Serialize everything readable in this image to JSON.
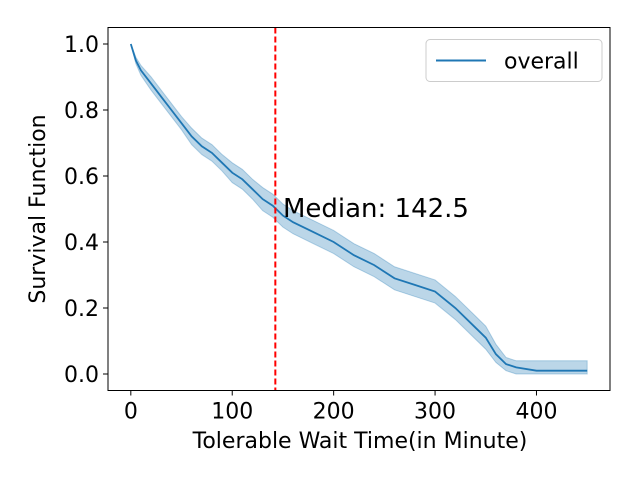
{
  "chart_data": {
    "type": "survival",
    "xlabel": "Tolerable Wait Time(in Minute)",
    "ylabel": "Survival Function",
    "x": [
      0,
      5,
      10,
      20,
      30,
      40,
      50,
      60,
      70,
      80,
      90,
      100,
      110,
      120,
      130,
      140,
      150,
      160,
      180,
      200,
      220,
      240,
      260,
      280,
      300,
      320,
      340,
      350,
      360,
      370,
      380,
      400,
      450
    ],
    "series": [
      {
        "name": "overall",
        "color": "#1f77b4",
        "values": [
          1.0,
          0.95,
          0.92,
          0.88,
          0.84,
          0.8,
          0.76,
          0.72,
          0.69,
          0.67,
          0.64,
          0.61,
          0.59,
          0.56,
          0.53,
          0.51,
          0.48,
          0.46,
          0.43,
          0.4,
          0.36,
          0.33,
          0.29,
          0.27,
          0.25,
          0.2,
          0.14,
          0.11,
          0.06,
          0.03,
          0.02,
          0.01,
          0.01
        ],
        "upper": [
          1.0,
          0.96,
          0.935,
          0.9,
          0.86,
          0.82,
          0.78,
          0.745,
          0.715,
          0.695,
          0.665,
          0.64,
          0.62,
          0.59,
          0.565,
          0.545,
          0.515,
          0.495,
          0.465,
          0.435,
          0.395,
          0.365,
          0.325,
          0.305,
          0.285,
          0.235,
          0.175,
          0.145,
          0.09,
          0.05,
          0.04,
          0.04,
          0.04
        ],
        "lower": [
          1.0,
          0.94,
          0.905,
          0.86,
          0.82,
          0.78,
          0.74,
          0.695,
          0.665,
          0.645,
          0.615,
          0.58,
          0.56,
          0.53,
          0.495,
          0.475,
          0.445,
          0.425,
          0.395,
          0.365,
          0.325,
          0.295,
          0.255,
          0.235,
          0.215,
          0.165,
          0.105,
          0.075,
          0.035,
          0.01,
          0.0,
          0.0,
          0.0
        ]
      }
    ],
    "vline": {
      "x": 142.5,
      "color": "#ff0000"
    },
    "annotation": {
      "text": "Median: 142.5",
      "x": 150,
      "y": 0.5
    },
    "xlim": [
      -22.5,
      472.5
    ],
    "xticks": [
      0,
      100,
      200,
      300,
      400
    ],
    "ylim": [
      -0.05,
      1.05
    ],
    "yticks": [
      {
        "value": 0,
        "label": "0.0"
      },
      0.2,
      0.4,
      0.6,
      0.8,
      {
        "value": 1,
        "label": "1.0"
      }
    ],
    "legend": "upper right"
  }
}
